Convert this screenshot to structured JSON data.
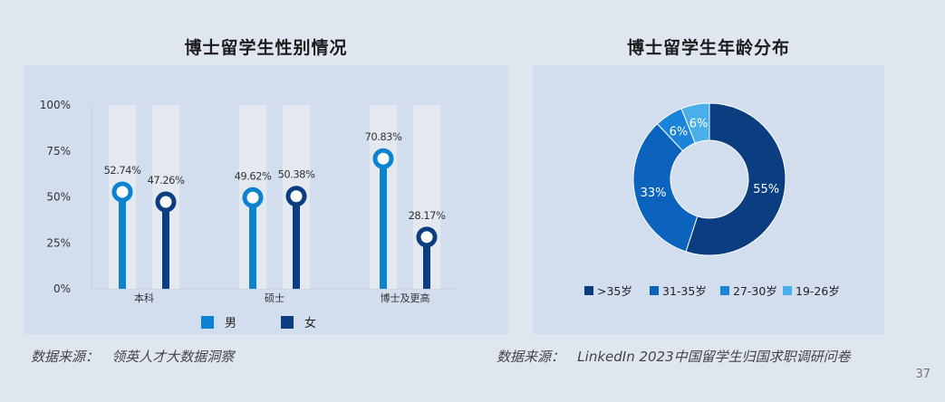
{
  "left_title": "博士留学生性别情况",
  "right_title": "博士留学生年龄分布",
  "source_left": "数据来源：   领英人才大数据洞察",
  "source_right": "数据来源：   LinkedIn 2023中国留学生归国求职调研问卷",
  "page_number": "37",
  "colors": {
    "male": "#0a84d0",
    "female": "#0b3e80",
    "track": "#e4e9f1",
    "pie": [
      "#0b3e80",
      "#0b63be",
      "#1a84d8",
      "#4aaee8"
    ]
  },
  "chart_data": [
    {
      "type": "bar",
      "title": "博士留学生性别情况",
      "categories": [
        "本科",
        "硕士",
        "博士及更高"
      ],
      "series": [
        {
          "name": "男",
          "values": [
            52.74,
            49.62,
            70.83
          ]
        },
        {
          "name": "女",
          "values": [
            47.26,
            50.38,
            28.17
          ]
        }
      ],
      "value_labels": [
        [
          "52.74%",
          "49.62%",
          "70.83%"
        ],
        [
          "47.26%",
          "50.38%",
          "28.17%"
        ]
      ],
      "ylim": [
        0,
        100
      ],
      "yticks": [
        "0%",
        "25%",
        "50%",
        "75%",
        "100%"
      ],
      "legend": "bottom"
    },
    {
      "type": "pie",
      "title": "博士留学生年龄分布",
      "categories": [
        ">35岁",
        "31-35岁",
        "27-30岁",
        "19-26岁"
      ],
      "values": [
        55,
        33,
        6,
        6
      ],
      "labels": [
        "55%",
        "33%",
        "6%",
        "6%"
      ],
      "legend": "bottom"
    }
  ]
}
